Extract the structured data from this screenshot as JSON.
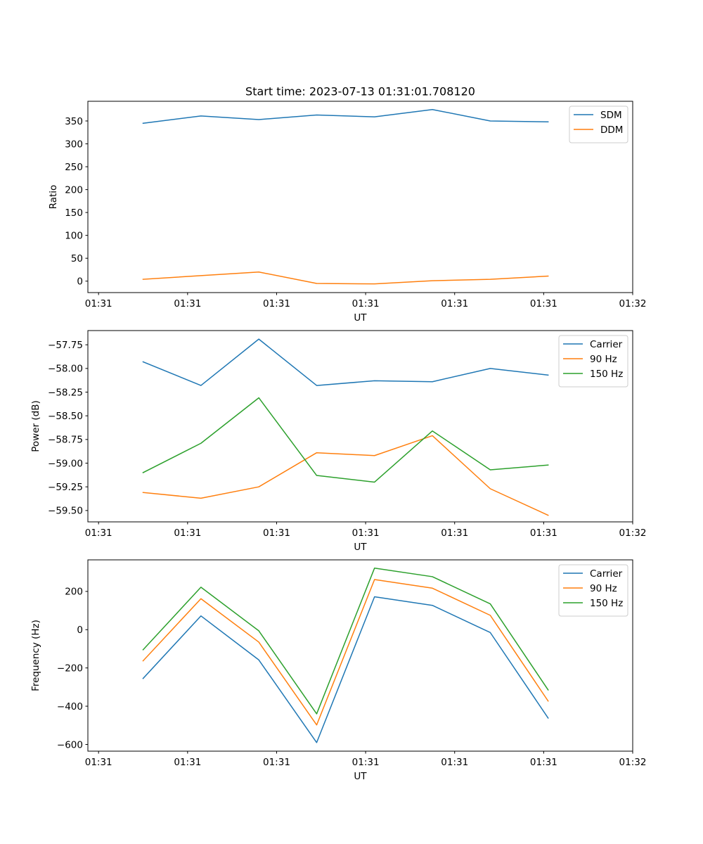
{
  "figure": {
    "title": "Start time: 2023-07-13 01:31:01.708120"
  },
  "colors": {
    "blue": "#1f77b4",
    "orange": "#ff7f0e",
    "green": "#2ca02c"
  },
  "chart_data": [
    {
      "type": "line",
      "title": "Start time: 2023-07-13 01:31:01.708120",
      "xlabel": "UT",
      "ylabel": "Ratio",
      "x_ticks": [
        0,
        1,
        2,
        3,
        4,
        5,
        6
      ],
      "x_tick_labels": [
        "01:31",
        "01:31",
        "01:31",
        "01:31",
        "01:31",
        "01:31",
        "01:32"
      ],
      "xlim": [
        -0.12,
        6.0
      ],
      "x": [
        0.5,
        1.15,
        1.8,
        2.45,
        3.1,
        3.75,
        4.4,
        5.05
      ],
      "ylim": [
        -25,
        393
      ],
      "y_ticks": [
        0,
        50,
        100,
        150,
        200,
        250,
        300,
        350
      ],
      "y_tick_labels": [
        "0",
        "50",
        "100",
        "150",
        "200",
        "250",
        "300",
        "350"
      ],
      "legend_position": "top-right",
      "series": [
        {
          "name": "SDM",
          "color": "#1f77b4",
          "values": [
            345,
            361,
            353,
            363,
            359,
            375,
            350,
            348
          ]
        },
        {
          "name": "DDM",
          "color": "#ff7f0e",
          "values": [
            4,
            12,
            20,
            -5,
            -6,
            1,
            4,
            11
          ]
        }
      ]
    },
    {
      "type": "line",
      "xlabel": "UT",
      "ylabel": "Power (dB)",
      "x_ticks": [
        0,
        1,
        2,
        3,
        4,
        5,
        6
      ],
      "x_tick_labels": [
        "01:31",
        "01:31",
        "01:31",
        "01:31",
        "01:31",
        "01:31",
        "01:32"
      ],
      "xlim": [
        -0.12,
        6.0
      ],
      "x": [
        0.5,
        1.15,
        1.8,
        2.45,
        3.1,
        3.75,
        4.4,
        5.05
      ],
      "ylim": [
        -59.62,
        -57.6
      ],
      "y_ticks": [
        -59.5,
        -59.25,
        -59.0,
        -58.75,
        -58.5,
        -58.25,
        -58.0,
        -57.75
      ],
      "y_tick_labels": [
        "−59.50",
        "−59.25",
        "−59.00",
        "−58.75",
        "−58.50",
        "−58.25",
        "−58.00",
        "−57.75"
      ],
      "legend_position": "top-right",
      "series": [
        {
          "name": "Carrier",
          "color": "#1f77b4",
          "values": [
            -57.93,
            -58.18,
            -57.69,
            -58.18,
            -58.13,
            -58.14,
            -58.0,
            -58.07
          ]
        },
        {
          "name": "90 Hz",
          "color": "#ff7f0e",
          "values": [
            -59.31,
            -59.37,
            -59.25,
            -58.89,
            -58.92,
            -58.71,
            -59.27,
            -59.55
          ]
        },
        {
          "name": "150 Hz",
          "color": "#2ca02c",
          "values": [
            -59.1,
            -58.79,
            -58.31,
            -59.13,
            -59.2,
            -58.66,
            -59.07,
            -59.02
          ]
        }
      ]
    },
    {
      "type": "line",
      "xlabel": "UT",
      "ylabel": "Frequency (Hz)",
      "x_ticks": [
        0,
        1,
        2,
        3,
        4,
        5,
        6
      ],
      "x_tick_labels": [
        "01:31",
        "01:31",
        "01:31",
        "01:31",
        "01:31",
        "01:31",
        "01:32"
      ],
      "xlim": [
        -0.12,
        6.0
      ],
      "x": [
        0.5,
        1.15,
        1.8,
        2.45,
        3.1,
        3.75,
        4.4,
        5.05
      ],
      "ylim": [
        -635,
        365
      ],
      "y_ticks": [
        -600,
        -400,
        -200,
        0,
        200
      ],
      "y_tick_labels": [
        "−600",
        "−400",
        "−200",
        "0",
        "200"
      ],
      "legend_position": "top-right",
      "series": [
        {
          "name": "Carrier",
          "color": "#1f77b4",
          "values": [
            -255,
            72,
            -158,
            -590,
            172,
            127,
            -15,
            -462
          ]
        },
        {
          "name": "90 Hz",
          "color": "#ff7f0e",
          "values": [
            -163,
            162,
            -65,
            -498,
            262,
            217,
            75,
            -373
          ]
        },
        {
          "name": "150 Hz",
          "color": "#2ca02c",
          "values": [
            -105,
            222,
            -6,
            -440,
            322,
            277,
            135,
            -315
          ]
        }
      ]
    }
  ]
}
